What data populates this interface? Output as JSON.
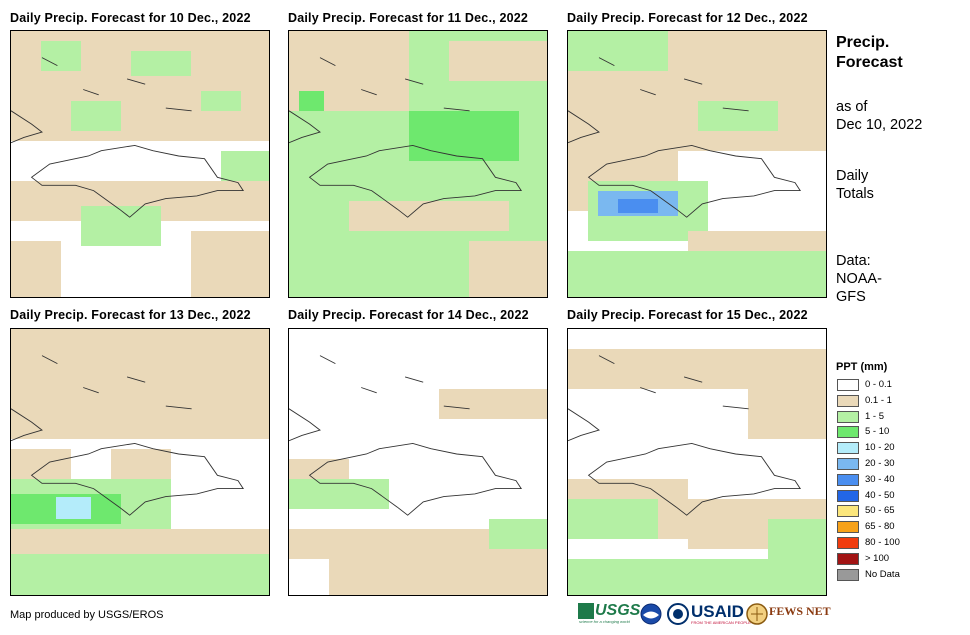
{
  "panels": [
    {
      "title": "Daily Precip. Forecast for 10 Dec., 2022"
    },
    {
      "title": "Daily Precip. Forecast for 11 Dec., 2022"
    },
    {
      "title": "Daily Precip. Forecast for 12 Dec., 2022"
    },
    {
      "title": "Daily Precip. Forecast for 13 Dec., 2022"
    },
    {
      "title": "Daily Precip. Forecast for 14 Dec., 2022"
    },
    {
      "title": "Daily Precip. Forecast for 15 Dec., 2022"
    }
  ],
  "side": {
    "title_line1": "Precip.",
    "title_line2": "Forecast",
    "asof_line1": "as of",
    "asof_line2": "Dec 10, 2022",
    "totals_line1": "Daily",
    "totals_line2": "Totals",
    "data_line1": "Data:",
    "data_line2": "NOAA-",
    "data_line3": "GFS"
  },
  "legend": {
    "title": "PPT (mm)",
    "items": [
      {
        "label": "0 - 0.1",
        "color": "#ffffff"
      },
      {
        "label": "0.1 - 1",
        "color": "#ead9b9"
      },
      {
        "label": "1 - 5",
        "color": "#b4f0a4"
      },
      {
        "label": "5 - 10",
        "color": "#6ee86e"
      },
      {
        "label": "10 - 20",
        "color": "#b4ecfa"
      },
      {
        "label": "20 - 30",
        "color": "#7ab8f0"
      },
      {
        "label": "30 - 40",
        "color": "#4a8ef0"
      },
      {
        "label": "40 - 50",
        "color": "#2266e6"
      },
      {
        "label": "50 - 65",
        "color": "#fbe67c"
      },
      {
        "label": "65 - 80",
        "color": "#f7a21a"
      },
      {
        "label": "80 - 100",
        "color": "#f03c0e"
      },
      {
        "label": "> 100",
        "color": "#a21414"
      },
      {
        "label": "No Data",
        "color": "#999999"
      }
    ]
  },
  "credit": "Map produced by USGS/EROS",
  "logos": {
    "usgs": "USGS",
    "usgs_tagline": "science for a changing world",
    "usaid": "USAID",
    "usaid_tagline": "FROM THE AMERICAN PEOPLE",
    "fewsnet": "FEWS NET"
  }
}
